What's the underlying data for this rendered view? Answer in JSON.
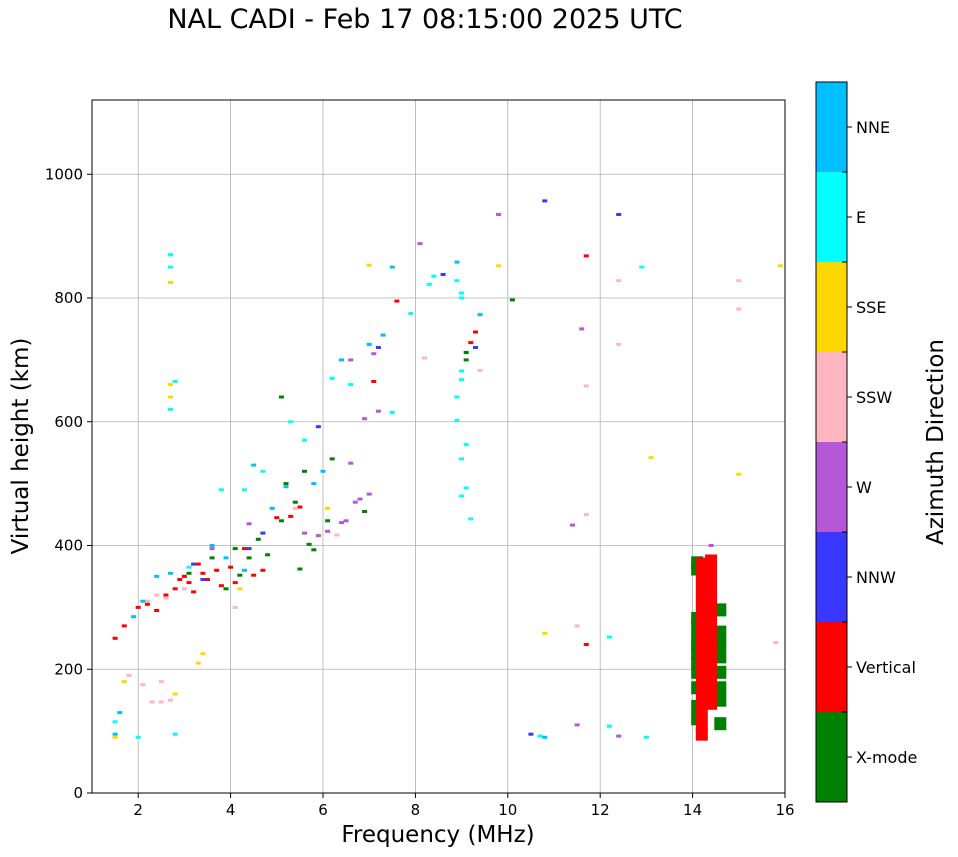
{
  "chart_data": {
    "type": "scatter",
    "title": "NAL CADI - Feb 17 08:15:00 2025 UTC",
    "xlabel": "Frequency (MHz)",
    "ylabel": "Virtual height (km)",
    "xlim": [
      1,
      16
    ],
    "ylim": [
      0,
      1120
    ],
    "xticks": [
      2,
      4,
      6,
      8,
      10,
      12,
      14,
      16
    ],
    "yticks": [
      0,
      200,
      400,
      600,
      800,
      1000
    ],
    "grid": true,
    "colorbar": {
      "label": "Azimuth Direction",
      "categories": [
        {
          "name": "X-mode",
          "color": "#008000"
        },
        {
          "name": "Vertical",
          "color": "#ff0000"
        },
        {
          "name": "NNW",
          "color": "#3838ff"
        },
        {
          "name": "W",
          "color": "#b558d8"
        },
        {
          "name": "SSW",
          "color": "#ffb6c1"
        },
        {
          "name": "SSE",
          "color": "#ffd700"
        },
        {
          "name": "E",
          "color": "#00ffff"
        },
        {
          "name": "NNE",
          "color": "#00bfff"
        }
      ]
    },
    "series": [
      {
        "name": "X-mode",
        "points": [
          [
            3.1,
            355
          ],
          [
            3.6,
            380
          ],
          [
            3.9,
            330
          ],
          [
            4.1,
            395
          ],
          [
            4.2,
            352
          ],
          [
            4.4,
            380
          ],
          [
            4.6,
            410
          ],
          [
            4.8,
            385
          ],
          [
            5.1,
            440
          ],
          [
            5.2,
            500
          ],
          [
            5.4,
            470
          ],
          [
            5.5,
            362
          ],
          [
            5.6,
            520
          ],
          [
            5.7,
            402
          ],
          [
            5.8,
            393
          ],
          [
            6.1,
            440
          ],
          [
            6.2,
            540
          ],
          [
            6.9,
            455
          ],
          [
            5.1,
            640
          ],
          [
            9.1,
            712
          ],
          [
            9.1,
            700
          ],
          [
            10.1,
            797
          ],
          [
            14.1,
            372
          ],
          [
            14.1,
            362
          ],
          [
            14.1,
            282
          ],
          [
            14.1,
            270
          ],
          [
            14.1,
            250
          ],
          [
            14.1,
            240
          ],
          [
            14.1,
            225
          ],
          [
            14.1,
            210
          ],
          [
            14.1,
            195
          ],
          [
            14.1,
            170
          ],
          [
            14.1,
            140
          ],
          [
            14.1,
            120
          ],
          [
            14.6,
            296
          ],
          [
            14.6,
            260
          ],
          [
            14.6,
            240
          ],
          [
            14.6,
            220
          ],
          [
            14.6,
            195
          ],
          [
            14.6,
            170
          ],
          [
            14.6,
            150
          ],
          [
            14.6,
            112
          ]
        ]
      },
      {
        "name": "Vertical",
        "points": [
          [
            1.5,
            250
          ],
          [
            1.7,
            270
          ],
          [
            2.0,
            300
          ],
          [
            2.2,
            305
          ],
          [
            2.4,
            295
          ],
          [
            2.6,
            320
          ],
          [
            2.8,
            330
          ],
          [
            2.9,
            345
          ],
          [
            3.0,
            350
          ],
          [
            3.1,
            340
          ],
          [
            3.2,
            325
          ],
          [
            3.3,
            370
          ],
          [
            3.4,
            355
          ],
          [
            3.5,
            345
          ],
          [
            3.7,
            360
          ],
          [
            3.8,
            335
          ],
          [
            4.0,
            365
          ],
          [
            4.1,
            340
          ],
          [
            4.3,
            395
          ],
          [
            4.5,
            352
          ],
          [
            4.7,
            360
          ],
          [
            5.0,
            445
          ],
          [
            5.3,
            447
          ],
          [
            5.5,
            462
          ],
          [
            7.1,
            665
          ],
          [
            7.6,
            795
          ],
          [
            9.2,
            728
          ],
          [
            9.3,
            745
          ],
          [
            11.7,
            868
          ],
          [
            11.7,
            240
          ],
          [
            14.2,
            370
          ],
          [
            14.2,
            350
          ],
          [
            14.2,
            330
          ],
          [
            14.2,
            310
          ],
          [
            14.2,
            290
          ],
          [
            14.2,
            270
          ],
          [
            14.2,
            250
          ],
          [
            14.2,
            230
          ],
          [
            14.2,
            210
          ],
          [
            14.2,
            190
          ],
          [
            14.2,
            170
          ],
          [
            14.2,
            150
          ],
          [
            14.2,
            130
          ],
          [
            14.2,
            110
          ],
          [
            14.2,
            95
          ],
          [
            14.4,
            375
          ],
          [
            14.4,
            355
          ],
          [
            14.4,
            335
          ],
          [
            14.4,
            315
          ],
          [
            14.4,
            295
          ],
          [
            14.4,
            275
          ],
          [
            14.4,
            255
          ],
          [
            14.4,
            240
          ],
          [
            14.4,
            220
          ],
          [
            14.4,
            200
          ],
          [
            14.4,
            185
          ],
          [
            14.4,
            165
          ],
          [
            14.4,
            145
          ]
        ]
      },
      {
        "name": "NNW",
        "points": [
          [
            3.2,
            370
          ],
          [
            3.4,
            345
          ],
          [
            4.4,
            395
          ],
          [
            4.7,
            420
          ],
          [
            5.9,
            592
          ],
          [
            7.2,
            720
          ],
          [
            8.6,
            838
          ],
          [
            9.3,
            720
          ],
          [
            10.5,
            95
          ],
          [
            10.8,
            957
          ],
          [
            12.4,
            935
          ]
        ]
      },
      {
        "name": "W",
        "points": [
          [
            3.6,
            395
          ],
          [
            4.4,
            435
          ],
          [
            5.6,
            420
          ],
          [
            5.9,
            416
          ],
          [
            6.1,
            423
          ],
          [
            6.4,
            437
          ],
          [
            6.5,
            440
          ],
          [
            6.7,
            470
          ],
          [
            6.8,
            475
          ],
          [
            7.0,
            483
          ],
          [
            6.6,
            533
          ],
          [
            6.9,
            605
          ],
          [
            7.2,
            617
          ],
          [
            6.6,
            700
          ],
          [
            7.1,
            710
          ],
          [
            8.1,
            888
          ],
          [
            9.8,
            935
          ],
          [
            11.4,
            433
          ],
          [
            11.5,
            110
          ],
          [
            11.6,
            750
          ],
          [
            12.4,
            92
          ],
          [
            14.4,
            400
          ]
        ]
      },
      {
        "name": "SSW",
        "points": [
          [
            1.8,
            190
          ],
          [
            2.1,
            175
          ],
          [
            2.3,
            147
          ],
          [
            2.5,
            147
          ],
          [
            2.7,
            150
          ],
          [
            2.5,
            180
          ],
          [
            2.2,
            310
          ],
          [
            2.4,
            320
          ],
          [
            2.6,
            315
          ],
          [
            3.0,
            330
          ],
          [
            4.1,
            300
          ],
          [
            5.4,
            460
          ],
          [
            6.3,
            417
          ],
          [
            8.2,
            703
          ],
          [
            9.4,
            683
          ],
          [
            11.5,
            270
          ],
          [
            11.7,
            450
          ],
          [
            11.7,
            658
          ],
          [
            12.4,
            725
          ],
          [
            12.4,
            828
          ],
          [
            15.0,
            828
          ],
          [
            15.0,
            782
          ],
          [
            15.8,
            243
          ]
        ]
      },
      {
        "name": "SSE",
        "points": [
          [
            1.7,
            180
          ],
          [
            1.5,
            90
          ],
          [
            2.7,
            640
          ],
          [
            2.7,
            660
          ],
          [
            2.7,
            825
          ],
          [
            3.3,
            210
          ],
          [
            3.4,
            225
          ],
          [
            2.8,
            160
          ],
          [
            4.2,
            330
          ],
          [
            6.1,
            460
          ],
          [
            7.0,
            853
          ],
          [
            9.8,
            852
          ],
          [
            10.8,
            258
          ],
          [
            13.1,
            542
          ],
          [
            15.0,
            515
          ],
          [
            15.9,
            852
          ]
        ]
      },
      {
        "name": "E",
        "points": [
          [
            1.5,
            115
          ],
          [
            2.0,
            90
          ],
          [
            2.8,
            95
          ],
          [
            2.7,
            850
          ],
          [
            2.7,
            870
          ],
          [
            2.8,
            665
          ],
          [
            2.7,
            620
          ],
          [
            3.1,
            365
          ],
          [
            3.8,
            490
          ],
          [
            4.3,
            490
          ],
          [
            4.7,
            520
          ],
          [
            5.3,
            600
          ],
          [
            5.6,
            570
          ],
          [
            6.2,
            670
          ],
          [
            6.6,
            660
          ],
          [
            7.5,
            615
          ],
          [
            7.9,
            775
          ],
          [
            8.3,
            822
          ],
          [
            8.4,
            835
          ],
          [
            8.9,
            828
          ],
          [
            9.0,
            682
          ],
          [
            9.0,
            668
          ],
          [
            9.1,
            563
          ],
          [
            9.0,
            540
          ],
          [
            8.9,
            602
          ],
          [
            8.9,
            640
          ],
          [
            9.0,
            808
          ],
          [
            9.0,
            800
          ],
          [
            9.1,
            493
          ],
          [
            9.0,
            480
          ],
          [
            9.2,
            443
          ],
          [
            10.7,
            92
          ],
          [
            12.2,
            108
          ],
          [
            12.2,
            252
          ],
          [
            12.9,
            850
          ],
          [
            13.0,
            90
          ]
        ]
      },
      {
        "name": "NNE",
        "points": [
          [
            1.5,
            95
          ],
          [
            1.6,
            130
          ],
          [
            1.9,
            285
          ],
          [
            2.1,
            310
          ],
          [
            2.4,
            350
          ],
          [
            2.7,
            355
          ],
          [
            3.6,
            400
          ],
          [
            3.9,
            380
          ],
          [
            4.3,
            360
          ],
          [
            4.5,
            530
          ],
          [
            4.9,
            460
          ],
          [
            5.2,
            495
          ],
          [
            5.8,
            500
          ],
          [
            6.0,
            520
          ],
          [
            6.4,
            700
          ],
          [
            7.0,
            725
          ],
          [
            7.3,
            740
          ],
          [
            7.5,
            850
          ],
          [
            8.9,
            858
          ],
          [
            9.4,
            773
          ],
          [
            10.8,
            90
          ]
        ]
      }
    ]
  }
}
